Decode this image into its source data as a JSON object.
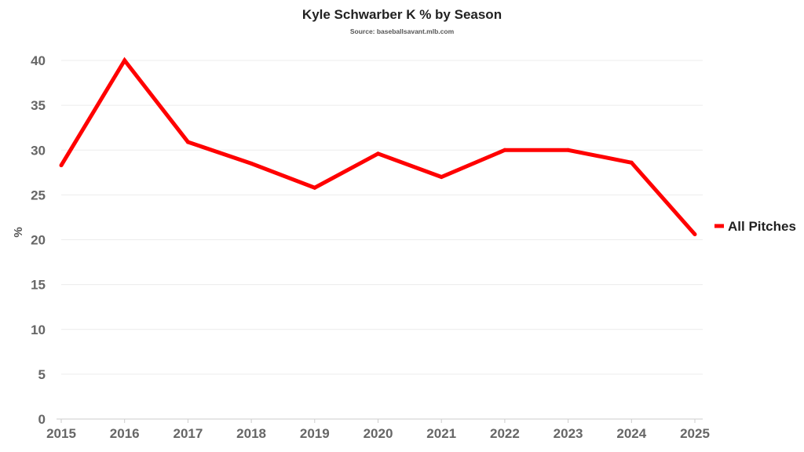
{
  "chart_data": {
    "type": "line",
    "title": "Kyle Schwarber K % by Season",
    "subtitle": "Source: baseballsavant.mlb.com",
    "xlabel": "",
    "ylabel": "%",
    "x": [
      "2015",
      "2016",
      "2017",
      "2018",
      "2019",
      "2020",
      "2021",
      "2022",
      "2023",
      "2024",
      "2025"
    ],
    "series": [
      {
        "name": "All Pitches",
        "color": "#ff0000",
        "values": [
          28.3,
          40.0,
          30.9,
          28.5,
          25.8,
          29.6,
          27.0,
          30.0,
          30.0,
          28.6,
          20.6
        ]
      }
    ],
    "yticks": [
      0,
      5,
      10,
      15,
      20,
      25,
      30,
      35,
      40
    ],
    "ylim": [
      0,
      40
    ],
    "grid": true,
    "legend_position": "right"
  }
}
